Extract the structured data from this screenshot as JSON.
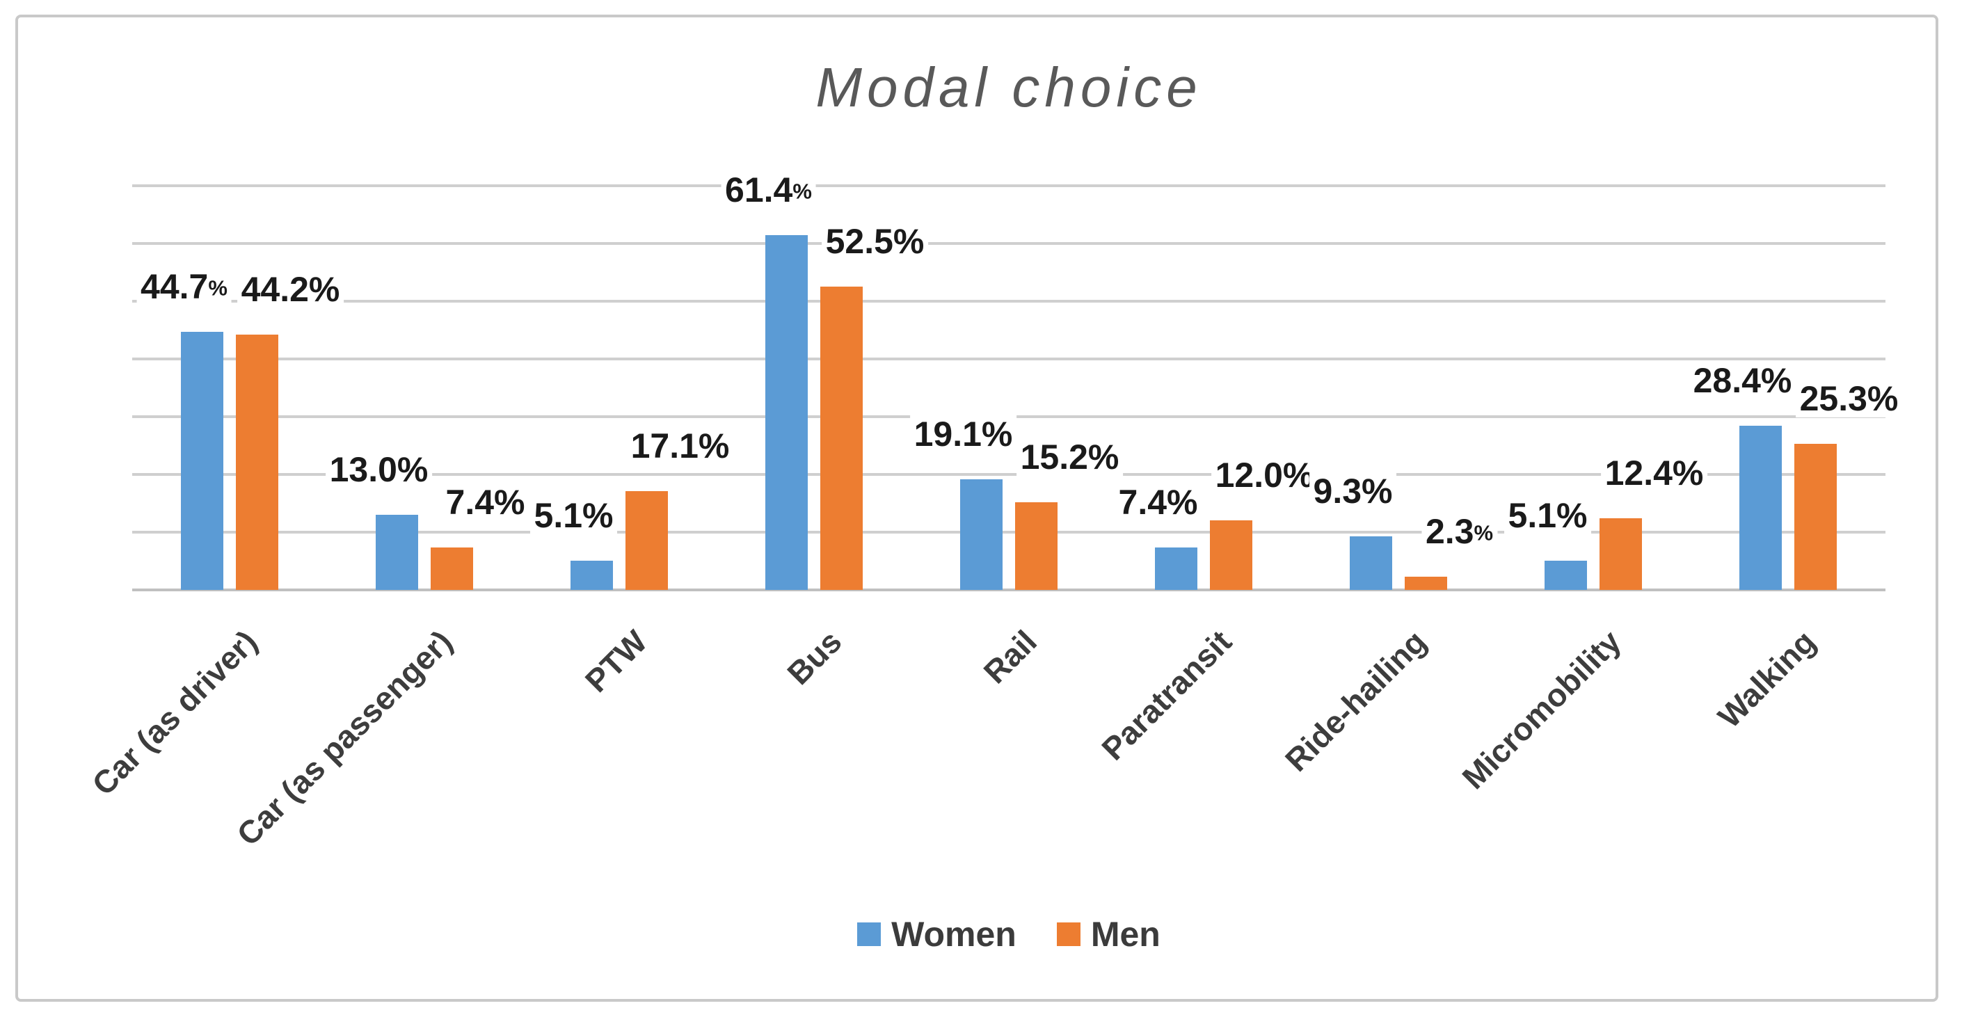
{
  "chart_data": {
    "type": "bar",
    "title": "Modal choice",
    "categories": [
      "Car (as driver)",
      "Car (as passenger)",
      "PTW",
      "Bus",
      "Rail",
      "Paratransit",
      "Ride-hailing",
      "Micromobility",
      "Walking"
    ],
    "series": [
      {
        "name": "Women",
        "color": "#5B9BD5",
        "values": [
          44.7,
          13.0,
          5.1,
          61.4,
          19.1,
          7.4,
          9.3,
          5.1,
          28.4
        ],
        "labels": [
          "44.7%",
          "13.0%",
          "5.1%",
          "61.4%",
          "19.1%",
          "7.4%",
          "9.3%",
          "5.1%",
          "28.4%"
        ],
        "small_pct": [
          true,
          false,
          false,
          true,
          false,
          false,
          false,
          false,
          false
        ]
      },
      {
        "name": "Men",
        "color": "#ED7D31",
        "values": [
          44.2,
          7.4,
          17.1,
          52.5,
          15.2,
          12.0,
          2.3,
          12.4,
          25.3
        ],
        "labels": [
          "44.2%",
          "7.4%",
          "17.1%",
          "52.5%",
          "15.2%",
          "12.0%",
          "2.3%",
          "12.4%",
          "25.3%"
        ],
        "small_pct": [
          false,
          false,
          false,
          false,
          false,
          false,
          true,
          false,
          false
        ]
      }
    ],
    "xlabel": "",
    "ylabel": "",
    "ylim": [
      0,
      70
    ],
    "gridline_step": 10,
    "grid": true,
    "y_axis_tick_labels": "hidden",
    "legend_position": "bottom",
    "data_labels": "outside-end"
  },
  "colors": {
    "background": "#ffffff",
    "border": "#c9c9c9",
    "grid": "#cfcfcf",
    "axis_line": "#c0c0c0",
    "title": "#595959",
    "data_label": "#1a1a1a",
    "category_label": "#3d3d3d",
    "legend_text": "#3b3b3b"
  }
}
